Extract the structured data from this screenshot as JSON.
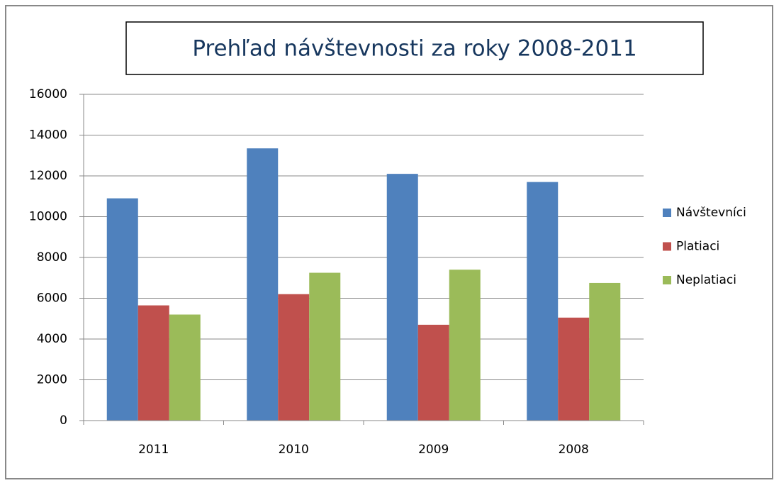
{
  "chart_data": {
    "type": "bar",
    "title": "Prehľad návštevnosti za roky 2008-2011",
    "categories": [
      "2011",
      "2010",
      "2009",
      "2008"
    ],
    "series": [
      {
        "name": "Návštevníci",
        "color": "#4f81bd",
        "values": [
          10900,
          13350,
          12100,
          11700
        ]
      },
      {
        "name": "Platiaci",
        "color": "#c0504d",
        "values": [
          5650,
          6200,
          4700,
          5050
        ]
      },
      {
        "name": "Neplatiaci",
        "color": "#9bbb59",
        "values": [
          5200,
          7250,
          7400,
          6750
        ]
      }
    ],
    "ylim": [
      0,
      16000
    ],
    "yticks": [
      0,
      2000,
      4000,
      6000,
      8000,
      10000,
      12000,
      14000,
      16000
    ],
    "grid": true,
    "legend": "right"
  }
}
